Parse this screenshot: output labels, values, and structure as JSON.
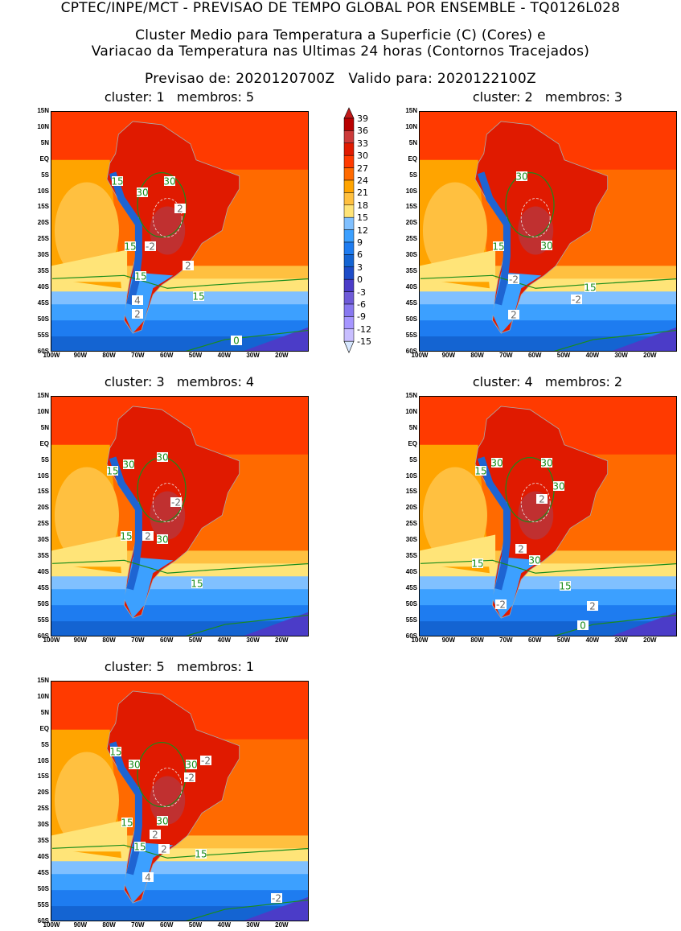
{
  "title": {
    "line1": "CPTEC/INPE/MCT - PREVISAO DE TEMPO GLOBAL POR ENSEMBLE - TQ0126L028",
    "line2": "Cluster Medio para Temperatura a Superficie (C) (Cores) e",
    "line3": "Variacao da Temperatura nas Ultimas 24 horas (Contornos Tracejados)",
    "line4": "Previsao de: 2020120700Z   Valido para: 2020122100Z"
  },
  "axes": {
    "lat_labels": [
      "15N",
      "10N",
      "5N",
      "EQ",
      "5S",
      "10S",
      "15S",
      "20S",
      "25S",
      "30S",
      "35S",
      "40S",
      "45S",
      "50S",
      "55S",
      "60S"
    ],
    "lon_labels": [
      "100W",
      "90W",
      "80W",
      "70W",
      "60W",
      "50W",
      "40W",
      "30W",
      "20W"
    ]
  },
  "colorbar": {
    "labels": [
      "39",
      "36",
      "33",
      "30",
      "27",
      "24",
      "21",
      "18",
      "15",
      "12",
      "9",
      "6",
      "3",
      "0",
      "-3",
      "-6",
      "-9",
      "-12",
      "-15"
    ],
    "colors": [
      "#c21a1a",
      "#b80000",
      "#cc3a3a",
      "#e01a00",
      "#ff3a00",
      "#ff6a00",
      "#ffa400",
      "#ffc040",
      "#ffe478",
      "#80c0ff",
      "#3ca0ff",
      "#1e7cf0",
      "#1464d2",
      "#1e4cc8",
      "#4b3cc8",
      "#6e5ad8",
      "#8878f0",
      "#a696ff",
      "#c8beff",
      "#d8e8ff"
    ]
  },
  "panels": [
    {
      "title": "cluster: 1   membros: 5",
      "labels": [
        "15",
        "30",
        "30",
        "2",
        "-2",
        "15",
        "2",
        "15",
        "15",
        "4",
        "2",
        "0"
      ]
    },
    {
      "title": "cluster: 2   membros: 3",
      "labels": [
        "30",
        "15",
        "30",
        "-2",
        "15",
        "-2",
        "2"
      ]
    },
    {
      "title": "cluster: 3   membros: 4",
      "labels": [
        "30",
        "15",
        "30",
        "-2",
        "15",
        "2",
        "30",
        "15"
      ]
    },
    {
      "title": "cluster: 4   membros: 2",
      "labels": [
        "30",
        "15",
        "30",
        "30",
        "2",
        "2",
        "30",
        "15",
        "15",
        "-2",
        "2",
        "0"
      ]
    },
    {
      "title": "cluster: 5   membros: 1",
      "labels": [
        "15",
        "30",
        "30",
        "-2",
        "-2",
        "15",
        "30",
        "2",
        "15",
        "2",
        "15",
        "4",
        "-2"
      ]
    }
  ]
}
